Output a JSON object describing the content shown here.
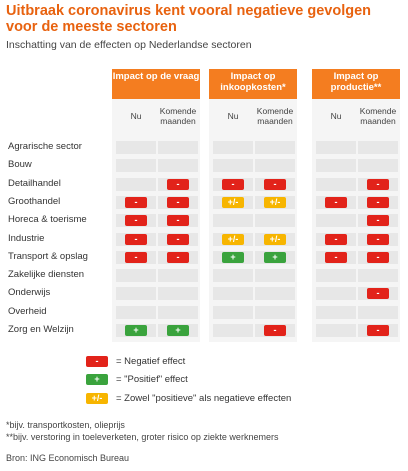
{
  "title": "Uitbraak coronavirus kent vooral negatieve gevolgen voor de meeste sectoren",
  "subtitle": "Inschatting van de effecten op Nederlandse sectoren",
  "groups": [
    {
      "label": "Impact op de vraag"
    },
    {
      "label": "Impact op inkoopkosten*"
    },
    {
      "label": "Impact op productie**"
    }
  ],
  "subcols": {
    "now": "Nu",
    "later": "Komende maanden"
  },
  "rows": [
    {
      "label": "Agrarische sector",
      "cells": [
        "",
        "",
        "",
        "",
        "",
        ""
      ]
    },
    {
      "label": "Bouw",
      "cells": [
        "",
        "",
        "",
        "",
        "",
        ""
      ]
    },
    {
      "label": "Detailhandel",
      "cells": [
        "",
        "neg",
        "neg",
        "neg",
        "",
        "neg"
      ]
    },
    {
      "label": "Groothandel",
      "cells": [
        "neg",
        "neg",
        "mix",
        "mix",
        "neg",
        "neg"
      ]
    },
    {
      "label": "Horeca & toerisme",
      "cells": [
        "neg",
        "neg",
        "",
        "",
        "",
        "neg"
      ]
    },
    {
      "label": "Industrie",
      "cells": [
        "neg",
        "neg",
        "mix",
        "mix",
        "neg",
        "neg"
      ]
    },
    {
      "label": "Transport & opslag",
      "cells": [
        "neg",
        "neg",
        "pos",
        "pos",
        "neg",
        "neg"
      ]
    },
    {
      "label": "Zakelijke diensten",
      "cells": [
        "",
        "",
        "",
        "",
        "",
        ""
      ]
    },
    {
      "label": "Onderwijs",
      "cells": [
        "",
        "",
        "",
        "",
        "",
        "neg"
      ]
    },
    {
      "label": "Overheid",
      "cells": [
        "",
        "",
        "",
        "",
        "",
        ""
      ]
    },
    {
      "label": "Zorg en Welzijn",
      "cells": [
        "pos",
        "pos",
        "",
        "neg",
        "",
        "neg"
      ]
    }
  ],
  "badge_text": {
    "neg": "-",
    "pos": "+",
    "mix": "+/-"
  },
  "colors": {
    "neg": "#e2231a",
    "pos": "#3aa33d",
    "mix": "#f7b500",
    "header": "#f47d20",
    "title": "#e8620f"
  },
  "legend": [
    {
      "type": "neg",
      "text": "= Negatief effect"
    },
    {
      "type": "pos",
      "text": "= \"Positief\" effect"
    },
    {
      "type": "mix",
      "text": "= Zowel \"positieve\" als negatieve effecten"
    }
  ],
  "footnotes": [
    "*bijv. transportkosten, olieprijs",
    "**bijv. verstoring in toeleverketen, groter risico op ziekte werknemers",
    "Bron: ING Economisch Bureau"
  ]
}
